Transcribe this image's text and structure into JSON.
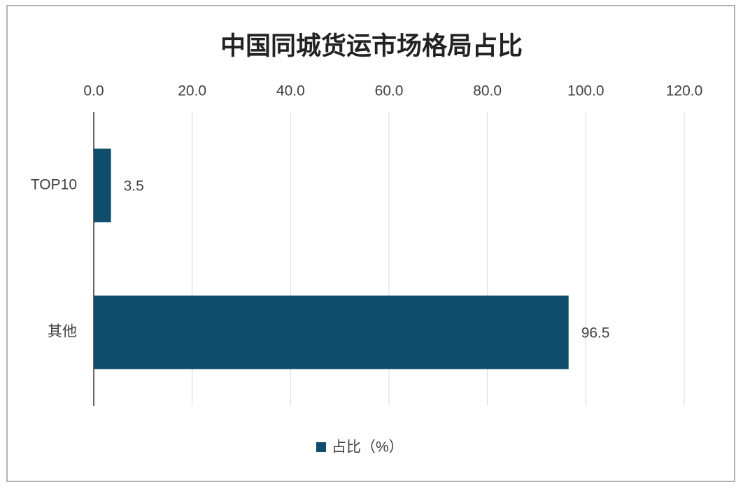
{
  "chart_data": {
    "type": "bar",
    "orientation": "horizontal",
    "title": "中国同城货运市场格局占比",
    "categories": [
      "TOP10",
      "其他"
    ],
    "series": [
      {
        "name": "占比（%）",
        "color": "#0e4d6b",
        "values": [
          3.5,
          96.5
        ]
      }
    ],
    "xlim": [
      0,
      120
    ],
    "xticks": [
      {
        "value": 0,
        "label": "0.0"
      },
      {
        "value": 20,
        "label": "20.0"
      },
      {
        "value": 40,
        "label": "40.0"
      },
      {
        "value": 60,
        "label": "60.0"
      },
      {
        "value": 80,
        "label": "80.0"
      },
      {
        "value": 100,
        "label": "100.0"
      },
      {
        "value": 120,
        "label": "120.0"
      }
    ],
    "grid": true,
    "legend": "bottom"
  }
}
